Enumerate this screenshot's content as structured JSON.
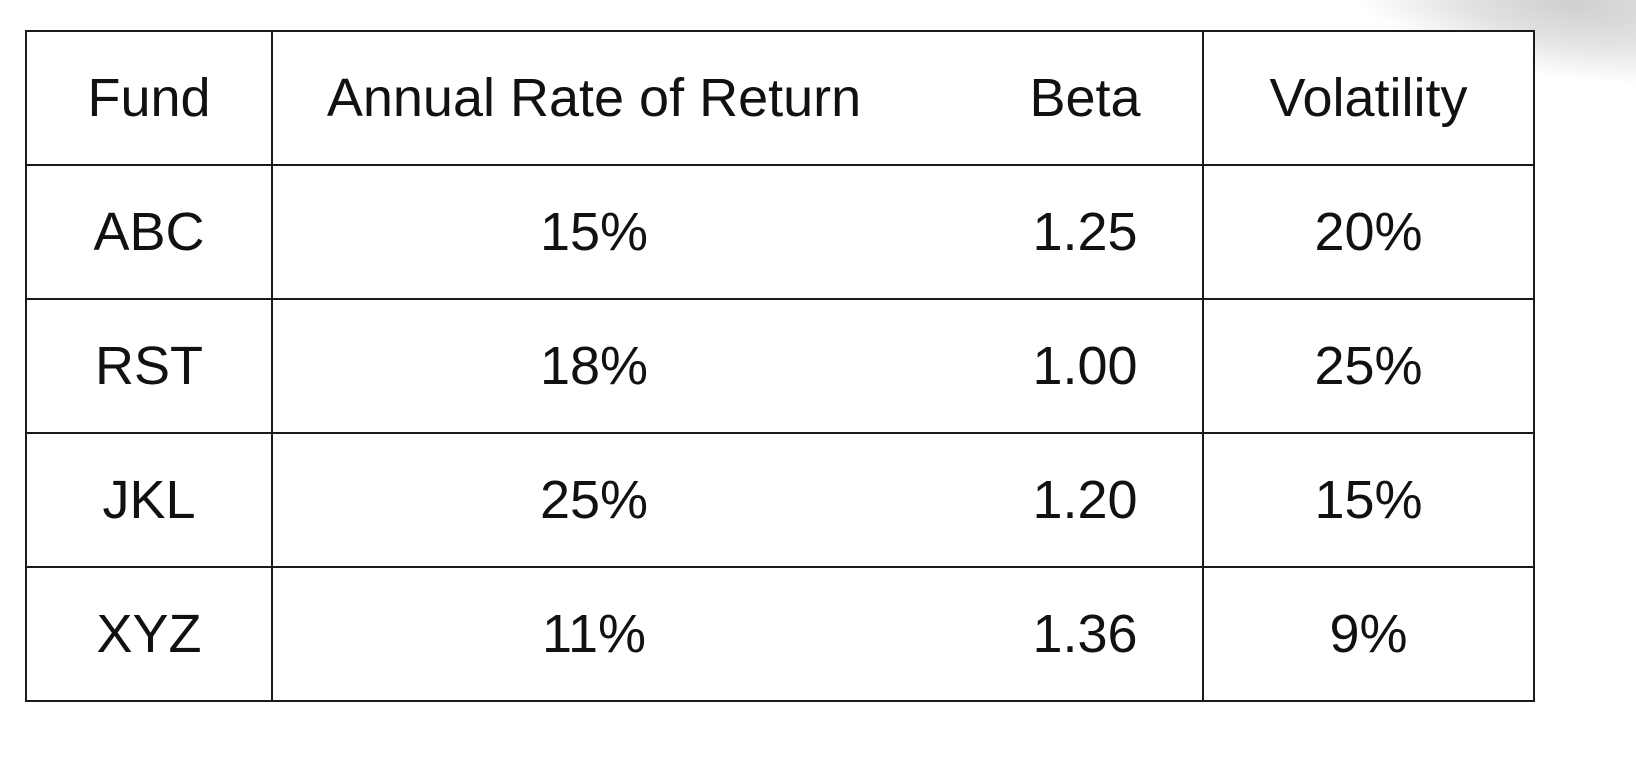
{
  "table": {
    "headers": {
      "fund": "Fund",
      "rate": "Annual Rate of Return",
      "beta": "Beta",
      "volatility": "Volatility"
    },
    "rows": [
      {
        "fund": "ABC",
        "rate": "15%",
        "beta": "1.25",
        "volatility": "20%"
      },
      {
        "fund": "RST",
        "rate": "18%",
        "beta": "1.00",
        "volatility": "25%"
      },
      {
        "fund": "JKL",
        "rate": "25%",
        "beta": "1.20",
        "volatility": "15%"
      },
      {
        "fund": "XYZ",
        "rate": "11%",
        "beta": "1.36",
        "volatility": "9%"
      }
    ]
  }
}
